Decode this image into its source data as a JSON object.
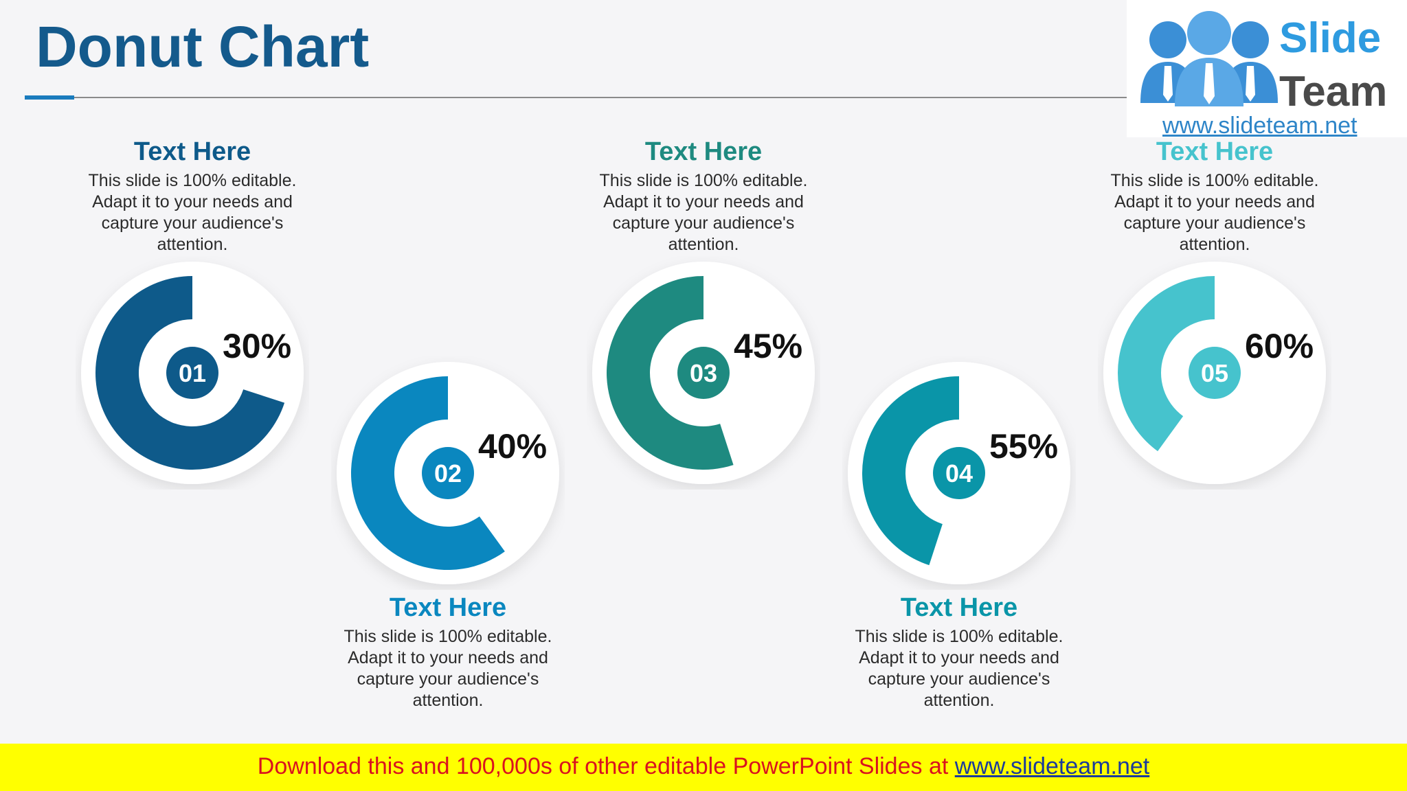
{
  "slide": {
    "title": "Donut Chart"
  },
  "logo": {
    "word1": "Slide",
    "word2": "Team",
    "url": "www.slideteam.net"
  },
  "footer": {
    "text": "Download this and 100,000s of other editable PowerPoint Slides at ",
    "link": "www.slideteam.net"
  },
  "colors": {
    "title": "#145a8c",
    "item1": "#0e5a8a",
    "item2": "#0a87bf",
    "item3": "#1e8a80",
    "item4": "#0a95a8",
    "item5": "#46c3cd"
  },
  "chart_data": {
    "type": "donut",
    "items": [
      {
        "label": "01",
        "percent_label": "30%",
        "value": 30,
        "heading": "Text Here",
        "body": "This slide is 100% editable. Adapt it to your needs and capture your audience's attention."
      },
      {
        "label": "02",
        "percent_label": "40%",
        "value": 40,
        "heading": "Text Here",
        "body": "This slide is 100% editable. Adapt it to your needs and capture your audience's attention."
      },
      {
        "label": "03",
        "percent_label": "45%",
        "value": 45,
        "heading": "Text Here",
        "body": "This slide is 100% editable. Adapt it to your needs and capture your audience's attention."
      },
      {
        "label": "04",
        "percent_label": "55%",
        "value": 55,
        "heading": "Text Here",
        "body": "This slide is 100% editable. Adapt it to your needs and capture your audience's attention."
      },
      {
        "label": "05",
        "percent_label": "60%",
        "value": 60,
        "heading": "Text Here",
        "body": "This slide is 100% editable. Adapt it to your needs and capture your audience's attention."
      }
    ]
  }
}
